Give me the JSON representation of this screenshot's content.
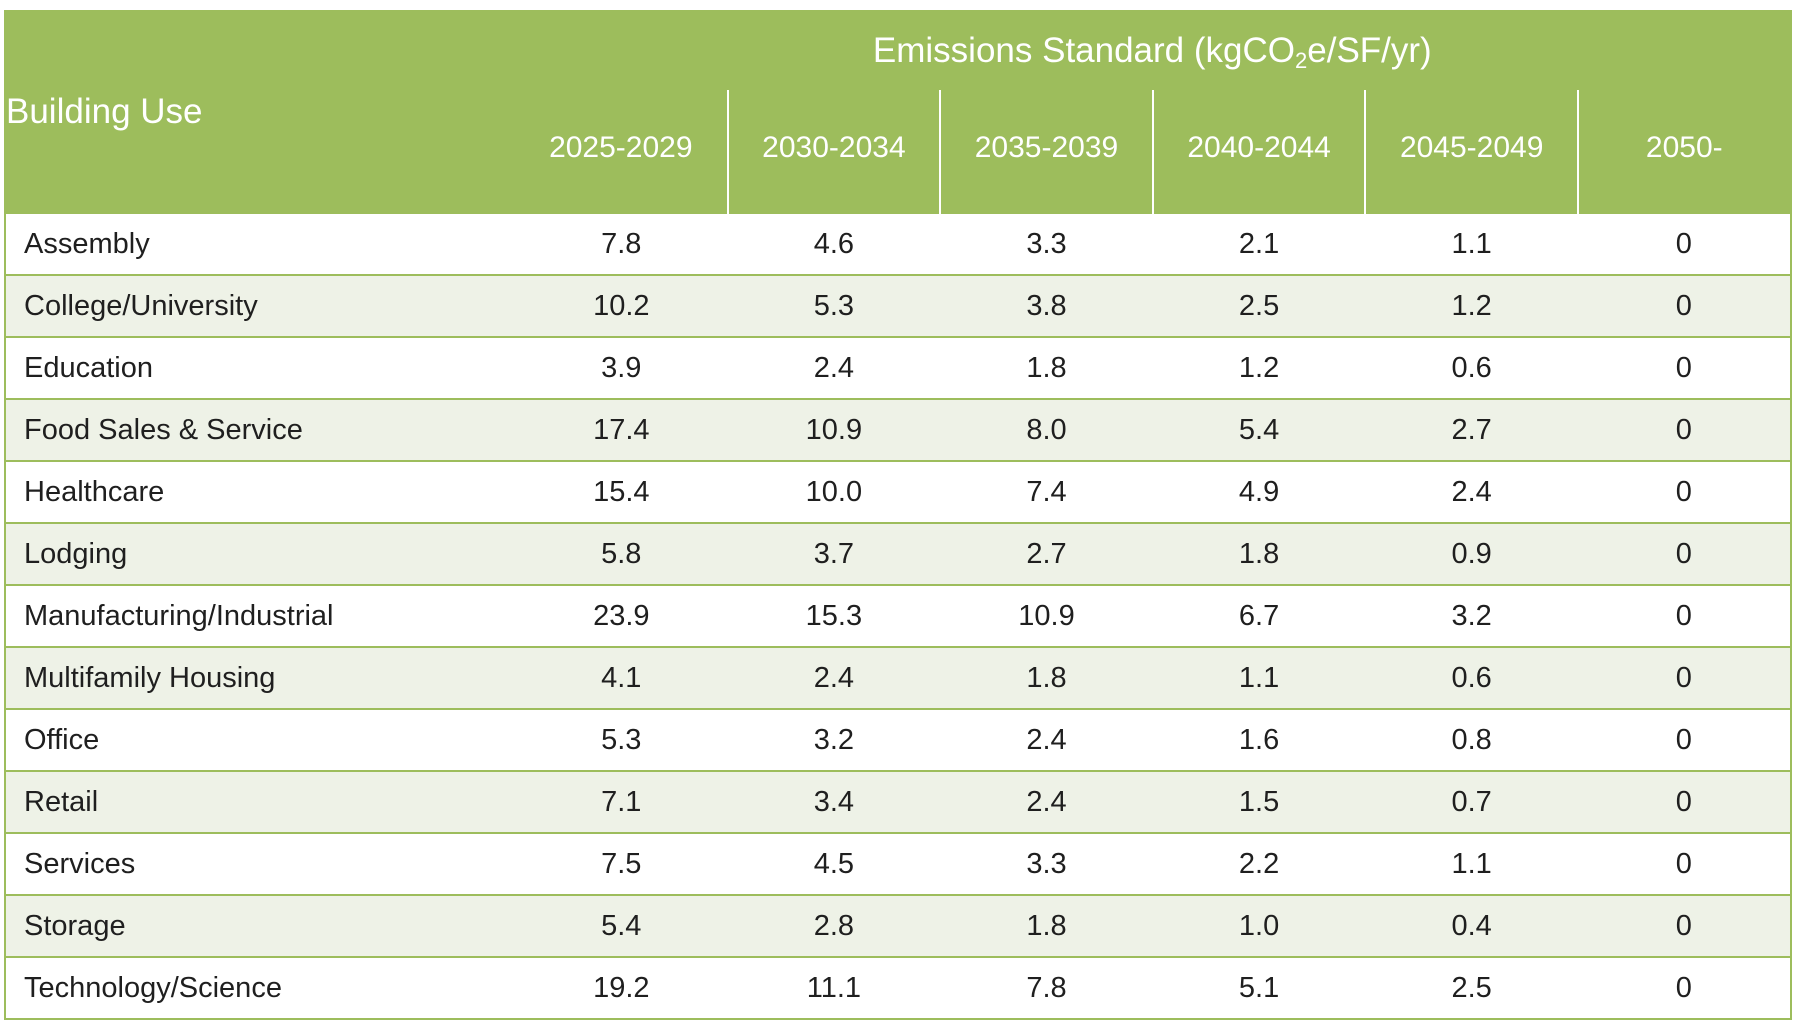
{
  "header": {
    "building_use_label": "Building Use",
    "standard_label_pre": "Emissions Standard (kgCO",
    "standard_label_sub": "2",
    "standard_label_post": "e/SF/yr)",
    "periods": [
      "2025-2029",
      "2030-2034",
      "2035-2039",
      "2040-2044",
      "2045-2049",
      "2050-"
    ]
  },
  "rows": [
    {
      "use": "Assembly",
      "values": [
        "7.8",
        "4.6",
        "3.3",
        "2.1",
        "1.1",
        "0"
      ]
    },
    {
      "use": "College/University",
      "values": [
        "10.2",
        "5.3",
        "3.8",
        "2.5",
        "1.2",
        "0"
      ]
    },
    {
      "use": "Education",
      "values": [
        "3.9",
        "2.4",
        "1.8",
        "1.2",
        "0.6",
        "0"
      ]
    },
    {
      "use": "Food Sales & Service",
      "values": [
        "17.4",
        "10.9",
        "8.0",
        "5.4",
        "2.7",
        "0"
      ]
    },
    {
      "use": "Healthcare",
      "values": [
        "15.4",
        "10.0",
        "7.4",
        "4.9",
        "2.4",
        "0"
      ]
    },
    {
      "use": "Lodging",
      "values": [
        "5.8",
        "3.7",
        "2.7",
        "1.8",
        "0.9",
        "0"
      ]
    },
    {
      "use": "Manufacturing/Industrial",
      "values": [
        "23.9",
        "15.3",
        "10.9",
        "6.7",
        "3.2",
        "0"
      ]
    },
    {
      "use": "Multifamily Housing",
      "values": [
        "4.1",
        "2.4",
        "1.8",
        "1.1",
        "0.6",
        "0"
      ]
    },
    {
      "use": "Office",
      "values": [
        "5.3",
        "3.2",
        "2.4",
        "1.6",
        "0.8",
        "0"
      ]
    },
    {
      "use": "Retail",
      "values": [
        "7.1",
        "3.4",
        "2.4",
        "1.5",
        "0.7",
        "0"
      ]
    },
    {
      "use": "Services",
      "values": [
        "7.5",
        "4.5",
        "3.3",
        "2.2",
        "1.1",
        "0"
      ]
    },
    {
      "use": "Storage",
      "values": [
        "5.4",
        "2.8",
        "1.8",
        "1.0",
        "0.4",
        "0"
      ]
    },
    {
      "use": "Technology/Science",
      "values": [
        "19.2",
        "11.1",
        "7.8",
        "5.1",
        "2.5",
        "0"
      ]
    }
  ],
  "colors": {
    "header_green": "#9dbd5c",
    "stripe": "#eef2e7"
  }
}
